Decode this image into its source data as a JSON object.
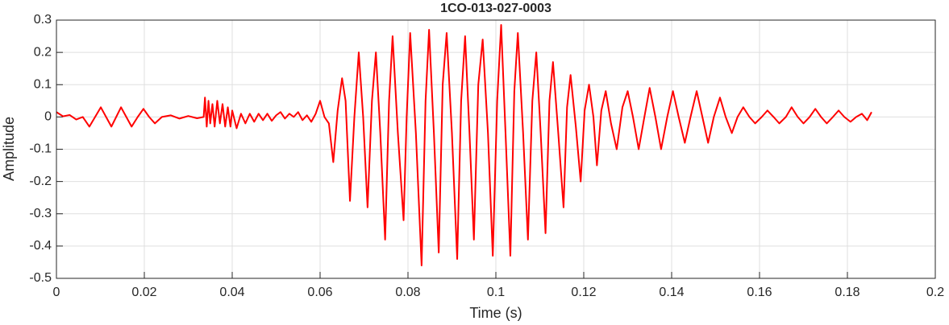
{
  "chart_data": {
    "type": "line",
    "title": "1CO-013-027-0003",
    "xlabel": "Time (s)",
    "ylabel": "Amplitude",
    "color": "#ff0000",
    "grid": true,
    "xlim": [
      0,
      0.2
    ],
    "xticks": [
      0,
      0.02,
      0.04,
      0.06,
      0.08,
      0.1,
      0.12,
      0.14,
      0.16,
      0.18,
      0.2
    ],
    "ylim": [
      -0.5,
      0.3
    ],
    "yticks": [
      -0.5,
      -0.4,
      -0.3,
      -0.2,
      -0.1,
      0,
      0.1,
      0.2,
      0.3
    ],
    "x": [
      0,
      0.0015,
      0.003,
      0.0045,
      0.006,
      0.0075,
      0.0088,
      0.0101,
      0.0113,
      0.0125,
      0.0136,
      0.0147,
      0.0159,
      0.0171,
      0.0185,
      0.0198,
      0.0211,
      0.0224,
      0.024,
      0.026,
      0.028,
      0.03,
      0.032,
      0.0335,
      0.0338,
      0.0342,
      0.0346,
      0.035,
      0.0355,
      0.036,
      0.0366,
      0.0372,
      0.0378,
      0.0384,
      0.039,
      0.0396,
      0.04,
      0.041,
      0.042,
      0.043,
      0.044,
      0.045,
      0.046,
      0.047,
      0.048,
      0.049,
      0.05,
      0.051,
      0.052,
      0.053,
      0.054,
      0.055,
      0.056,
      0.057,
      0.058,
      0.059,
      0.06,
      0.061,
      0.062,
      0.063,
      0.064,
      0.065,
      0.0658,
      0.0668,
      0.0678,
      0.0688,
      0.0698,
      0.0708,
      0.0718,
      0.0727,
      0.0737,
      0.0748,
      0.0757,
      0.0765,
      0.0777,
      0.079,
      0.0797,
      0.0805,
      0.0818,
      0.0831,
      0.084,
      0.0848,
      0.0859,
      0.087,
      0.0879,
      0.0888,
      0.09,
      0.0912,
      0.0921,
      0.093,
      0.094,
      0.095,
      0.096,
      0.097,
      0.0982,
      0.0993,
      0.1003,
      0.1012,
      0.1022,
      0.1033,
      0.1042,
      0.105,
      0.1062,
      0.1073,
      0.1083,
      0.1092,
      0.1102,
      0.1113,
      0.1122,
      0.113,
      0.1142,
      0.1154,
      0.1162,
      0.117,
      0.1182,
      0.1193,
      0.1202,
      0.1212,
      0.1222,
      0.123,
      0.124,
      0.125,
      0.1262,
      0.1275,
      0.1288,
      0.13,
      0.1312,
      0.1325,
      0.1338,
      0.135,
      0.1363,
      0.1376,
      0.139,
      0.1403,
      0.1416,
      0.143,
      0.1443,
      0.1457,
      0.147,
      0.1483,
      0.1496,
      0.151,
      0.1523,
      0.1537,
      0.155,
      0.1563,
      0.1577,
      0.159,
      0.1605,
      0.1618,
      0.1632,
      0.1645,
      0.166,
      0.1673,
      0.1687,
      0.17,
      0.1714,
      0.1727,
      0.174,
      0.1753,
      0.1767,
      0.178,
      0.1793,
      0.1807,
      0.182,
      0.1833,
      0.1845,
      0.1855
    ],
    "values": [
      0.015,
      0.002,
      0.006,
      -0.008,
      0,
      -0.03,
      0,
      0.03,
      0,
      -0.03,
      0,
      0.03,
      0,
      -0.03,
      0,
      0.025,
      0,
      -0.02,
      0,
      0.005,
      -0.005,
      0.003,
      -0.004,
      0,
      0.06,
      -0.03,
      0.05,
      -0.02,
      0.04,
      -0.03,
      0.05,
      -0.02,
      0.04,
      -0.03,
      0.03,
      -0.03,
      0.02,
      -0.035,
      0.01,
      -0.02,
      0.01,
      -0.015,
      0.01,
      -0.01,
      0.01,
      -0.012,
      0.005,
      0.015,
      -0.005,
      0.01,
      0,
      0.015,
      -0.01,
      0.005,
      -0.015,
      0.01,
      0.05,
      0,
      -0.02,
      -0.14,
      0.02,
      0.12,
      0.05,
      -0.26,
      0,
      0.2,
      0,
      -0.28,
      0.05,
      0.2,
      -0.05,
      -0.38,
      0.05,
      0.25,
      -0.05,
      -0.32,
      0,
      0.26,
      -0.05,
      -0.46,
      0.05,
      0.27,
      -0.05,
      -0.42,
      0.1,
      0.26,
      -0.05,
      -0.44,
      0.05,
      0.25,
      -0.05,
      -0.38,
      0.1,
      0.24,
      -0.05,
      -0.43,
      0.05,
      0.285,
      -0.05,
      -0.43,
      0.08,
      0.26,
      -0.05,
      -0.38,
      0.05,
      0.2,
      -0.05,
      -0.36,
      0.05,
      0.17,
      -0.05,
      -0.28,
      0.03,
      0.13,
      -0.03,
      -0.2,
      0.02,
      0.1,
      0,
      -0.15,
      0.02,
      0.08,
      -0.02,
      -0.1,
      0.03,
      0.08,
      0,
      -0.1,
      0,
      0.09,
      0,
      -0.1,
      0,
      0.08,
      0,
      -0.08,
      0,
      0.08,
      0,
      -0.08,
      0,
      0.06,
      0,
      -0.05,
      0,
      0.03,
      0,
      -0.02,
      0,
      0.02,
      0,
      -0.02,
      0,
      0.03,
      0,
      -0.02,
      0,
      0.025,
      0,
      -0.02,
      0,
      0.02,
      0,
      -0.015,
      0,
      0.01,
      -0.01,
      0.015
    ]
  }
}
